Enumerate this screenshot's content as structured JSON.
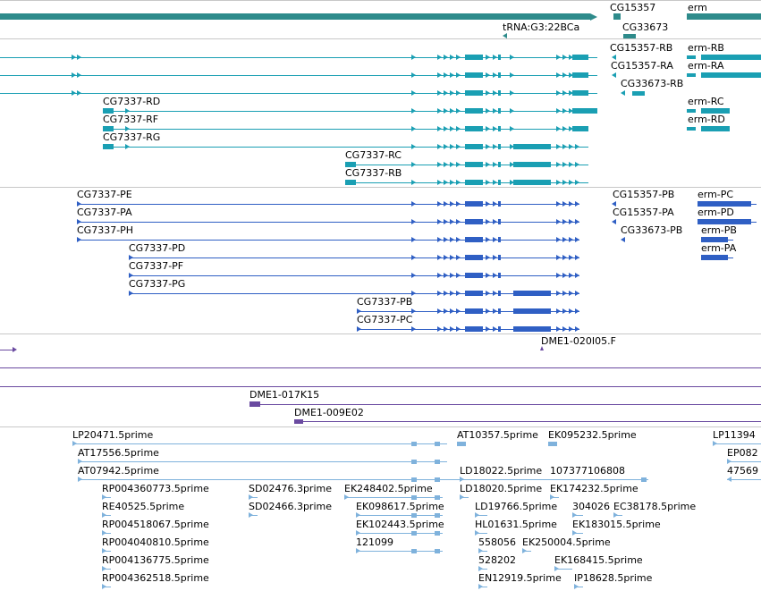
{
  "colors": {
    "gene": "#2e8b8b",
    "transcript": "#1a9fb3",
    "protein": "#2f5fc4",
    "clone": "#6a4aa0",
    "est": "#7fb2dc",
    "separator": "#c8c8c8"
  },
  "tracks": [
    {
      "name": "genes",
      "labels": [
        {
          "id": "g1",
          "text": "CG15357"
        },
        {
          "id": "g2",
          "text": "erm"
        },
        {
          "id": "g3",
          "text": "tRNA:G3:22BCa"
        },
        {
          "id": "g4",
          "text": "CG33673"
        }
      ]
    },
    {
      "name": "transcripts",
      "labels": [
        {
          "id": "t1",
          "text": "CG15357-RB"
        },
        {
          "id": "t2",
          "text": "erm-RB"
        },
        {
          "id": "t3",
          "text": "CG15357-RA"
        },
        {
          "id": "t4",
          "text": "erm-RA"
        },
        {
          "id": "t5",
          "text": "CG33673-RB"
        },
        {
          "id": "t6",
          "text": "CG7337-RD"
        },
        {
          "id": "t7",
          "text": "erm-RC"
        },
        {
          "id": "t8",
          "text": "CG7337-RF"
        },
        {
          "id": "t9",
          "text": "erm-RD"
        },
        {
          "id": "t10",
          "text": "CG7337-RG"
        },
        {
          "id": "t11",
          "text": "CG7337-RC"
        },
        {
          "id": "t12",
          "text": "CG7337-RB"
        }
      ]
    },
    {
      "name": "proteins",
      "labels": [
        {
          "id": "p1",
          "text": "CG7337-PE"
        },
        {
          "id": "p2",
          "text": "CG15357-PB"
        },
        {
          "id": "p3",
          "text": "erm-PC"
        },
        {
          "id": "p4",
          "text": "CG7337-PA"
        },
        {
          "id": "p5",
          "text": "CG15357-PA"
        },
        {
          "id": "p6",
          "text": "erm-PD"
        },
        {
          "id": "p7",
          "text": "CG7337-PH"
        },
        {
          "id": "p8",
          "text": "CG33673-PB"
        },
        {
          "id": "p9",
          "text": "erm-PB"
        },
        {
          "id": "p10",
          "text": "CG7337-PD"
        },
        {
          "id": "p11",
          "text": "erm-PA"
        },
        {
          "id": "p12",
          "text": "CG7337-PF"
        },
        {
          "id": "p13",
          "text": "CG7337-PG"
        },
        {
          "id": "p14",
          "text": "CG7337-PB"
        },
        {
          "id": "p15",
          "text": "CG7337-PC"
        }
      ]
    },
    {
      "name": "clones",
      "labels": [
        {
          "id": "c1",
          "text": "DME1-020I05.F"
        },
        {
          "id": "c2",
          "text": "DME1-017K15"
        },
        {
          "id": "c3",
          "text": "DME1-009E02"
        }
      ]
    },
    {
      "name": "ests",
      "labels": [
        {
          "id": "e1",
          "text": "LP20471.5prime"
        },
        {
          "id": "e2",
          "text": "AT10357.5prime"
        },
        {
          "id": "e3",
          "text": "EK095232.5prime"
        },
        {
          "id": "e4",
          "text": "LP11394"
        },
        {
          "id": "e5",
          "text": "AT17556.5prime"
        },
        {
          "id": "e6",
          "text": "EP082"
        },
        {
          "id": "e7",
          "text": "AT07942.5prime"
        },
        {
          "id": "e8",
          "text": "LD18022.5prime"
        },
        {
          "id": "e9",
          "text": "107377106808"
        },
        {
          "id": "e10",
          "text": "47569"
        },
        {
          "id": "e11",
          "text": "RP004360773.5prime"
        },
        {
          "id": "e12",
          "text": "SD02476.3prime"
        },
        {
          "id": "e13",
          "text": "EK248402.5prime"
        },
        {
          "id": "e14",
          "text": "LD18020.5prime"
        },
        {
          "id": "e15",
          "text": "EK174232.5prime"
        },
        {
          "id": "e16",
          "text": "RE40525.5prime"
        },
        {
          "id": "e17",
          "text": "SD02466.3prime"
        },
        {
          "id": "e18",
          "text": "EK098617.5prime"
        },
        {
          "id": "e19",
          "text": "LD19766.5prime"
        },
        {
          "id": "e20",
          "text": "304026"
        },
        {
          "id": "e21",
          "text": "EC38178.5prime"
        },
        {
          "id": "e22",
          "text": "RP004518067.5prime"
        },
        {
          "id": "e23",
          "text": "EK102443.5prime"
        },
        {
          "id": "e24",
          "text": "HL01631.5prime"
        },
        {
          "id": "e25",
          "text": "EK183015.5prime"
        },
        {
          "id": "e26",
          "text": "RP004040810.5prime"
        },
        {
          "id": "e27",
          "text": "121099"
        },
        {
          "id": "e28",
          "text": "558056"
        },
        {
          "id": "e29",
          "text": "EK250004.5prime"
        },
        {
          "id": "e30",
          "text": "RP004136775.5prime"
        },
        {
          "id": "e31",
          "text": "528202"
        },
        {
          "id": "e32",
          "text": "EK168415.5prime"
        },
        {
          "id": "e33",
          "text": "RP004362518.5prime"
        },
        {
          "id": "e34",
          "text": "EN12919.5prime"
        },
        {
          "id": "e35",
          "text": "IP18628.5prime"
        }
      ]
    }
  ]
}
